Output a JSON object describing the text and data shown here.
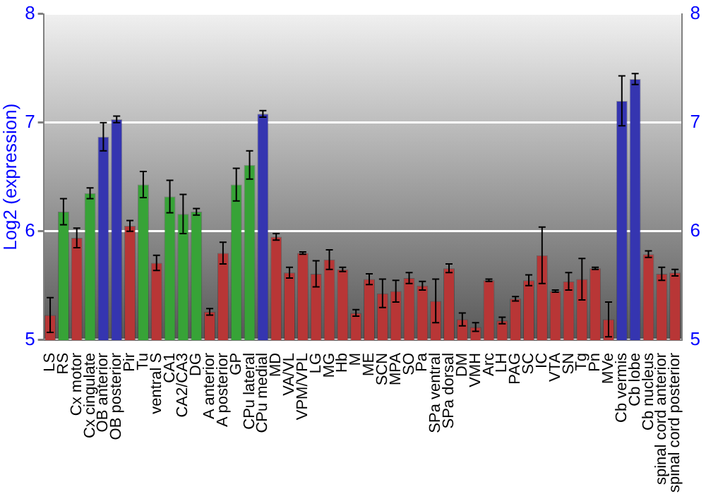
{
  "chart_data": {
    "type": "bar",
    "ylabel": "Log2 (expression)",
    "categories": [
      "LS",
      "RS",
      "Cx motor",
      "Cx cingulate",
      "OB anterior",
      "OB posterior",
      "Pir",
      "Tu",
      "ventral S",
      "CA1",
      "CA2/CA3",
      "DG",
      "A anterior",
      "A posterior",
      "GP",
      "CPu lateral",
      "CPu medial",
      "MD",
      "VA/VL",
      "VPM/VPL",
      "LG",
      "MG",
      "Hb",
      "M",
      "ME",
      "SCN",
      "MPA",
      "SO",
      "Pa",
      "SPa ventral",
      "SPa dorsal",
      "DM",
      "VMH",
      "Arc",
      "LH",
      "PAG",
      "SC",
      "IC",
      "VTA",
      "SN",
      "Tg",
      "Pn",
      "MVe",
      "Cb vermis",
      "Cb lobe",
      "Cb nucleus",
      "spinal cord anterior",
      "spinal cord posterior"
    ],
    "values": [
      5.23,
      6.18,
      5.94,
      6.35,
      6.87,
      7.03,
      6.05,
      6.43,
      5.71,
      6.32,
      6.16,
      6.18,
      5.26,
      5.8,
      6.43,
      6.61,
      7.08,
      5.95,
      5.62,
      5.8,
      5.61,
      5.74,
      5.65,
      5.25,
      5.56,
      5.43,
      5.45,
      5.57,
      5.5,
      5.36,
      5.66,
      5.19,
      5.12,
      5.55,
      5.18,
      5.38,
      5.55,
      5.78,
      5.45,
      5.54,
      5.56,
      5.66,
      5.19,
      7.2,
      7.4,
      5.79,
      5.61,
      5.62
    ],
    "errors": [
      0.16,
      0.12,
      0.09,
      0.05,
      0.13,
      0.03,
      0.05,
      0.12,
      0.07,
      0.15,
      0.18,
      0.03,
      0.03,
      0.1,
      0.15,
      0.13,
      0.03,
      0.03,
      0.05,
      0.01,
      0.12,
      0.09,
      0.02,
      0.03,
      0.05,
      0.13,
      0.1,
      0.05,
      0.04,
      0.2,
      0.04,
      0.06,
      0.04,
      0.01,
      0.03,
      0.02,
      0.05,
      0.26,
      0.01,
      0.08,
      0.19,
      0.01,
      0.16,
      0.23,
      0.05,
      0.03,
      0.06,
      0.03
    ],
    "colors": [
      "#b83636",
      "#37a337",
      "#b83636",
      "#37a337",
      "#3535b0",
      "#3535b0",
      "#b83636",
      "#37a337",
      "#b83636",
      "#37a337",
      "#37a337",
      "#37a337",
      "#b83636",
      "#b83636",
      "#37a337",
      "#37a337",
      "#3535b0",
      "#b83636",
      "#b83636",
      "#b83636",
      "#b83636",
      "#b83636",
      "#b83636",
      "#b83636",
      "#b83636",
      "#b83636",
      "#b83636",
      "#b83636",
      "#b83636",
      "#b83636",
      "#b83636",
      "#b83636",
      "#b83636",
      "#b83636",
      "#b83636",
      "#b83636",
      "#b83636",
      "#b83636",
      "#b83636",
      "#b83636",
      "#b83636",
      "#b83636",
      "#b83636",
      "#3535b0",
      "#3535b0",
      "#b83636",
      "#b83636",
      "#b83636"
    ],
    "ylim": [
      5,
      8
    ],
    "yticks": [
      5,
      6,
      7,
      8
    ],
    "y2lim": [
      5,
      8
    ],
    "y2ticks": [
      5,
      6,
      7,
      8
    ],
    "grid": "y",
    "legend": false
  }
}
